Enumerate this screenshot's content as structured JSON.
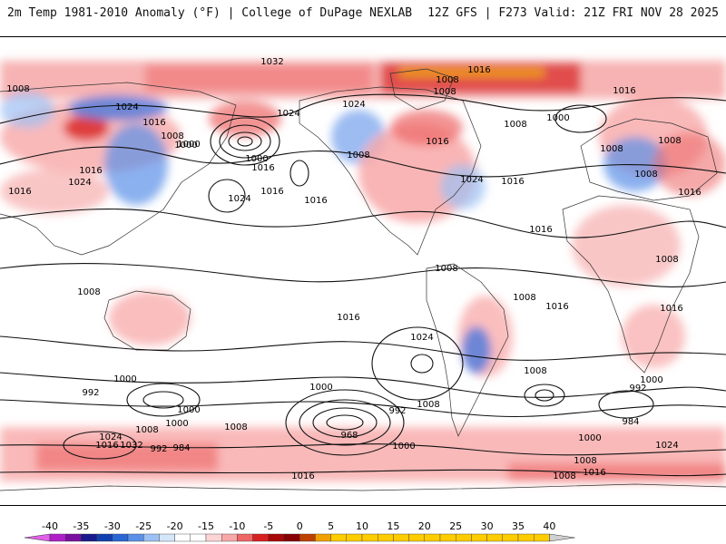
{
  "header": {
    "title": "2m Temp 1981-2010 Anomaly (°F) | College of DuPage NEXLAB",
    "model_info": "12Z GFS | F273 Valid: 21Z FRI NOV 28 2025"
  },
  "colorbar": {
    "ticks": [
      -40,
      -35,
      -30,
      -25,
      -20,
      -15,
      -10,
      -5,
      0,
      5,
      10,
      15,
      20,
      25,
      30,
      35,
      40
    ],
    "colors": [
      "#e060e8",
      "#b020c8",
      "#7a10a0",
      "#1a1a8c",
      "#1040b0",
      "#2a66d4",
      "#5a90e8",
      "#9cc0f4",
      "#d4e6fa",
      "#ffffff",
      "#ffffff",
      "#fcd4d4",
      "#f8a8a8",
      "#ee6666",
      "#d82020",
      "#a80808",
      "#880000",
      "#c04000",
      "#f0a000",
      "#ffcc00",
      "#d0d0d0"
    ]
  },
  "isobars": {
    "labels": [
      "1008",
      "1024",
      "1016",
      "1008",
      "1000",
      "1016",
      "1024",
      "1016",
      "1032",
      "1008",
      "1016",
      "1024",
      "1008",
      "1000",
      "1016",
      "1024",
      "1016",
      "1024",
      "1016",
      "1016",
      "1008",
      "1016",
      "1024",
      "1000",
      "1008",
      "1000",
      "1016",
      "1016",
      "1008",
      "1008",
      "1008",
      "1008",
      "1008",
      "1016",
      "1008",
      "1016",
      "1016",
      "1024",
      "1008",
      "1000",
      "1000",
      "992",
      "992",
      "984",
      "1000",
      "1008",
      "1008",
      "1024",
      "1032",
      "1016",
      "1000",
      "992",
      "968",
      "1008",
      "1000",
      "1016",
      "1008",
      "1008",
      "1000",
      "992",
      "984",
      "1000",
      "1024",
      "1008",
      "1016",
      "1016"
    ]
  }
}
